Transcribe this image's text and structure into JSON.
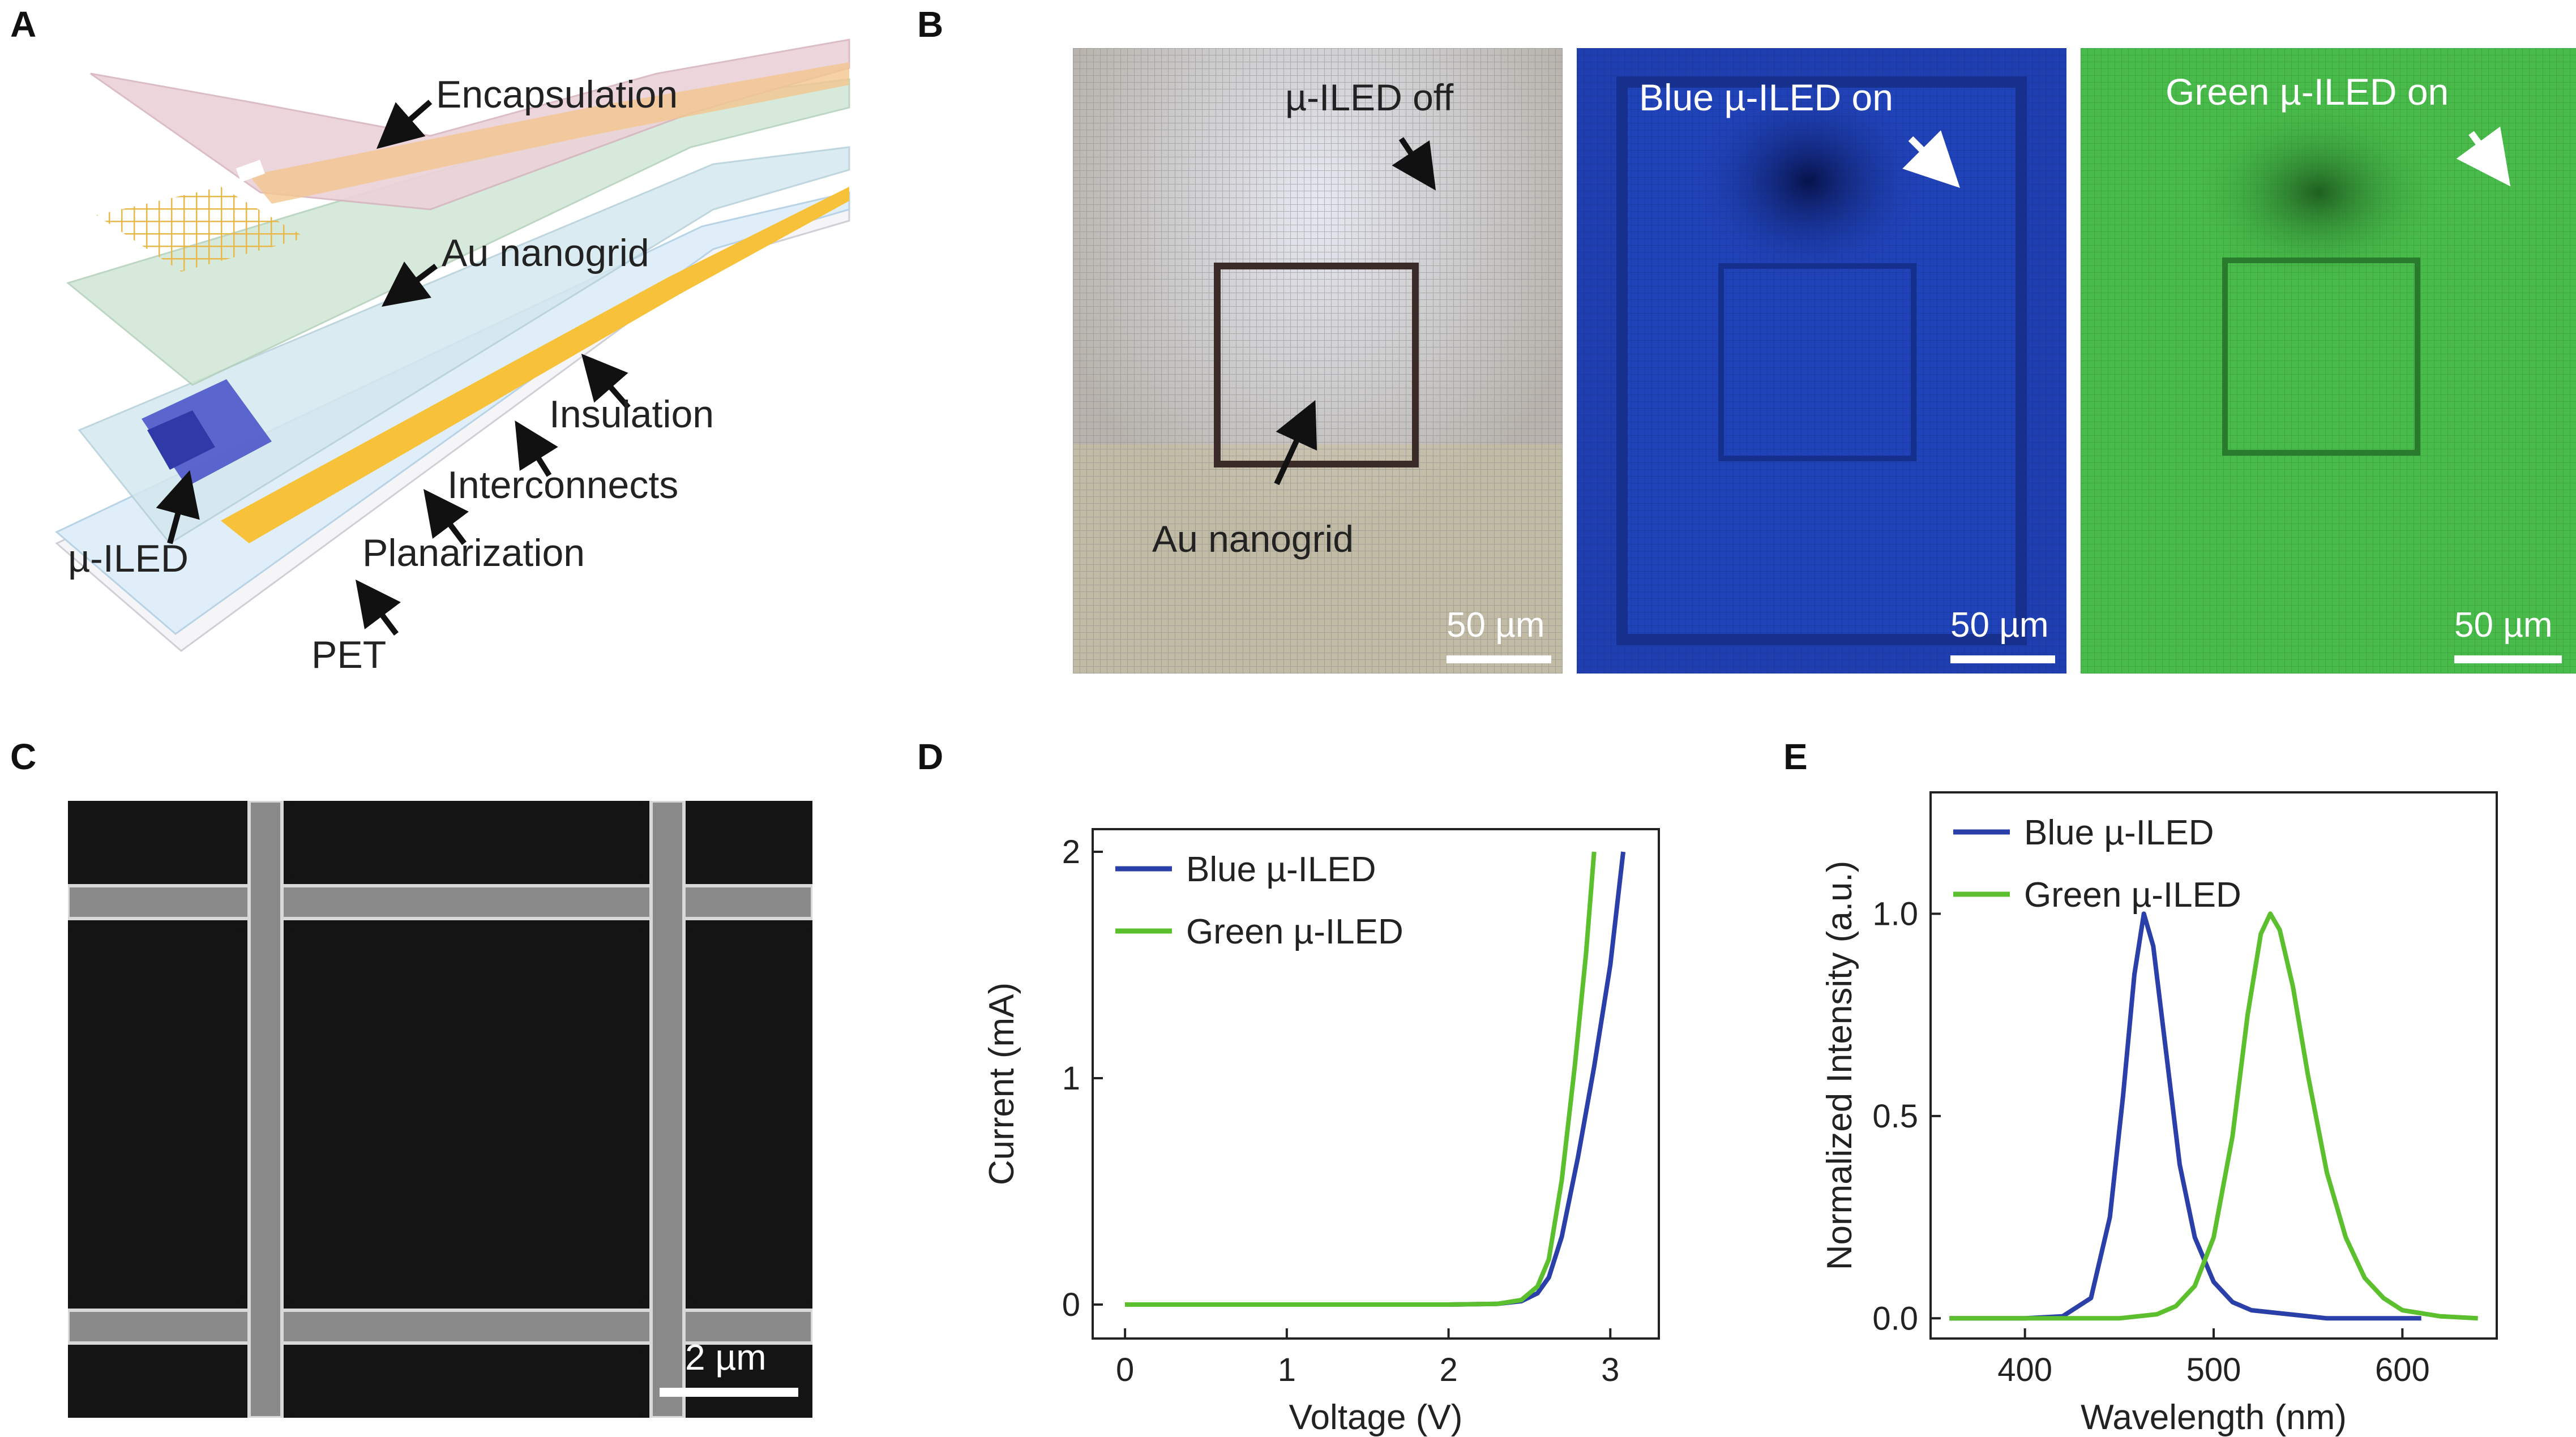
{
  "panels": {
    "a": {
      "letter": "A",
      "labels": {
        "encapsulation": "Encapsulation",
        "nanogrid": "Au nanogrid",
        "insulation": "Insulation",
        "interconnects": "Interconnects",
        "uiled": "µ-ILED",
        "planarization": "Planarization",
        "pet": "PET"
      }
    },
    "b": {
      "letter": "B",
      "left": {
        "title": "µ-ILED off",
        "caption": "Au nanogrid",
        "scale": "50 µm"
      },
      "middle": {
        "title": "Blue µ-ILED on",
        "scale": "50 µm"
      },
      "right": {
        "title": "Green µ-ILED on",
        "scale": "50 µm"
      }
    },
    "c": {
      "letter": "C",
      "scale": "2 µm"
    },
    "d": {
      "letter": "D"
    },
    "e": {
      "letter": "E"
    }
  },
  "colors": {
    "blue_series": "#2b3fa8",
    "green_series": "#5cbf2e",
    "blue_image": "#1f3fb0",
    "green_image": "#48bb4a",
    "sem_background": "#141414",
    "sem_grid": "#8a8a8a"
  },
  "chart_data": [
    {
      "id": "d",
      "type": "line",
      "xlabel": "Voltage (V)",
      "ylabel": "Current (mA)",
      "xlim": [
        -0.2,
        3.3
      ],
      "ylim": [
        -0.15,
        2.1
      ],
      "xticks": [
        0,
        1,
        2,
        3
      ],
      "yticks": [
        0,
        1,
        2
      ],
      "grid": false,
      "legend": "top-left",
      "series": [
        {
          "name": "Blue µ-ILED",
          "color": "#2b3fa8",
          "x": [
            0,
            1,
            2,
            2.3,
            2.45,
            2.55,
            2.62,
            2.7,
            2.8,
            2.9,
            3.0,
            3.08
          ],
          "y": [
            0,
            0,
            0,
            0.003,
            0.015,
            0.05,
            0.12,
            0.3,
            0.65,
            1.05,
            1.5,
            2.0
          ]
        },
        {
          "name": "Green µ-ILED",
          "color": "#5cbf2e",
          "x": [
            0,
            1,
            2,
            2.3,
            2.45,
            2.55,
            2.62,
            2.7,
            2.78,
            2.85,
            2.9
          ],
          "y": [
            0,
            0,
            0,
            0.003,
            0.02,
            0.08,
            0.2,
            0.55,
            1.05,
            1.55,
            2.0
          ]
        }
      ]
    },
    {
      "id": "e",
      "type": "line",
      "xlabel": "Wavelength (nm)",
      "ylabel": "Normalized Intensity (a.u.)",
      "xlim": [
        350,
        650
      ],
      "ylim": [
        -0.05,
        1.3
      ],
      "xticks": [
        400,
        500,
        600
      ],
      "yticks": [
        0.0,
        0.5,
        1.0
      ],
      "ytick_labels": [
        "0.0",
        "0.5",
        "1.0"
      ],
      "grid": false,
      "legend": "top-left",
      "series": [
        {
          "name": "Blue µ-ILED",
          "color": "#2b3fa8",
          "x": [
            360,
            400,
            420,
            435,
            445,
            452,
            458,
            463,
            468,
            475,
            482,
            490,
            500,
            510,
            520,
            540,
            560,
            580,
            600,
            610
          ],
          "y": [
            0,
            0,
            0.005,
            0.05,
            0.25,
            0.55,
            0.85,
            1.0,
            0.92,
            0.65,
            0.38,
            0.2,
            0.09,
            0.04,
            0.02,
            0.01,
            0.0,
            0.0,
            0.0,
            0.0
          ]
        },
        {
          "name": "Green µ-ILED",
          "color": "#5cbf2e",
          "x": [
            360,
            450,
            470,
            480,
            490,
            500,
            510,
            518,
            525,
            530,
            535,
            542,
            550,
            560,
            570,
            580,
            590,
            600,
            620,
            640
          ],
          "y": [
            0,
            0,
            0.01,
            0.03,
            0.08,
            0.2,
            0.45,
            0.75,
            0.95,
            1.0,
            0.96,
            0.82,
            0.6,
            0.36,
            0.2,
            0.1,
            0.05,
            0.02,
            0.005,
            0.0
          ]
        }
      ]
    }
  ]
}
